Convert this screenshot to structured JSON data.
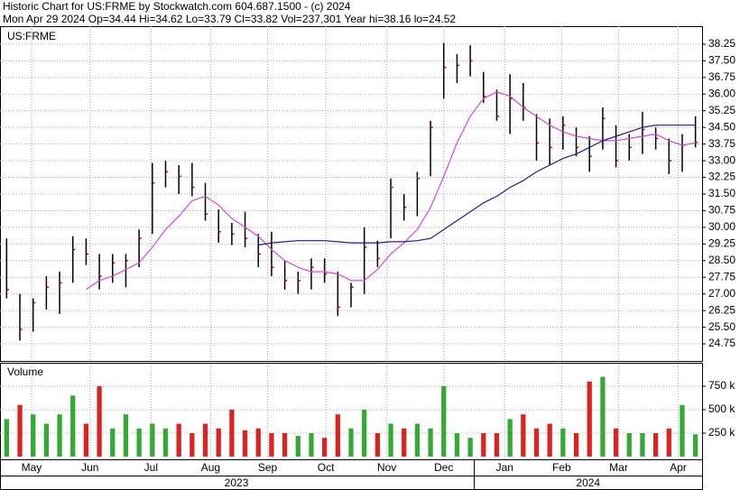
{
  "chart_data": {
    "type": "ohlc",
    "title": "Historic Chart for US:FRME by Stockwatch.com 604.687.1500 - (c) 2024",
    "subtitle": "Mon Apr 29 2024   Op=34.44   Hi=34.62   Lo=33.79   Cl=33.82   Vol=237,301   Year hi=38.16   lo=24.52",
    "symbol": "US:FRME",
    "x": [
      0,
      1,
      2,
      3,
      4,
      5,
      6,
      7,
      8,
      9,
      10,
      11,
      12,
      13,
      14,
      15,
      16,
      17,
      18,
      19,
      20,
      21,
      22,
      23,
      24,
      25,
      26,
      27,
      28,
      29,
      30,
      31,
      32,
      33,
      34,
      35,
      36,
      37,
      38,
      39,
      40,
      41,
      42,
      43,
      44,
      45,
      46,
      47,
      48,
      49,
      50,
      51,
      52
    ],
    "xlim": [
      -0.5,
      52.5
    ],
    "xticks": [
      {
        "value": 1.88,
        "label": "May"
      },
      {
        "value": 6.3,
        "label": "Jun"
      },
      {
        "value": 10.9,
        "label": "Jul"
      },
      {
        "value": 15.4,
        "label": "Aug"
      },
      {
        "value": 19.7,
        "label": "Sep"
      },
      {
        "value": 24.1,
        "label": "Oct"
      },
      {
        "value": 28.7,
        "label": "Nov"
      },
      {
        "value": 33.0,
        "label": "Dec"
      },
      {
        "value": 37.6,
        "label": "Jan"
      },
      {
        "value": 41.9,
        "label": "Feb"
      },
      {
        "value": 46.2,
        "label": "Mar"
      },
      {
        "value": 50.7,
        "label": "Apr"
      }
    ],
    "year_ticks": [
      {
        "value": 17.35,
        "label": "2023"
      },
      {
        "value": 43.9,
        "label": "2024"
      }
    ],
    "year_break": 35.3,
    "high": [
      29.5,
      27.0,
      26.8,
      27.8,
      28.0,
      29.6,
      29.5,
      28.8,
      28.8,
      28.8,
      29.9,
      32.9,
      33.0,
      32.8,
      32.9,
      32.0,
      30.8,
      30.2,
      30.7,
      29.7,
      29.8,
      28.5,
      28.0,
      28.6,
      28.6,
      28.0,
      27.5,
      30.0,
      29.4,
      32.2,
      31.5,
      32.5,
      34.8,
      38.3,
      37.8,
      38.2,
      37.0,
      36.2,
      36.9,
      36.5,
      35.1,
      34.9,
      35.0,
      34.5,
      34.1,
      35.4,
      34.6,
      34.2,
      35.2,
      34.5,
      34.0,
      34.2,
      35.0
    ],
    "low": [
      26.8,
      24.9,
      25.3,
      26.3,
      26.1,
      27.5,
      28.3,
      27.2,
      27.5,
      27.3,
      28.2,
      29.7,
      31.8,
      31.5,
      31.4,
      30.3,
      29.3,
      29.2,
      29.1,
      28.2,
      27.8,
      27.2,
      27.0,
      27.2,
      27.5,
      26.0,
      26.4,
      27.0,
      28.2,
      29.5,
      30.3,
      30.5,
      32.3,
      35.8,
      36.5,
      36.8,
      35.6,
      34.8,
      34.2,
      34.8,
      33.0,
      32.8,
      33.5,
      33.2,
      32.5,
      33.5,
      32.7,
      33.0,
      33.3,
      33.5,
      32.4,
      32.5,
      33.6
    ],
    "close": [
      27.2,
      25.4,
      26.6,
      27.3,
      27.5,
      29.0,
      28.8,
      27.8,
      28.4,
      28.5,
      29.5,
      32.0,
      32.5,
      32.3,
      31.8,
      30.6,
      29.8,
      29.7,
      29.5,
      28.8,
      28.2,
      27.6,
      27.6,
      28.2,
      27.9,
      26.4,
      27.3,
      29.1,
      28.6,
      31.8,
      30.9,
      32.2,
      34.5,
      37.2,
      37.3,
      37.5,
      35.9,
      35.0,
      35.8,
      35.4,
      33.8,
      33.6,
      34.6,
      33.6,
      33.2,
      34.9,
      33.0,
      33.6,
      34.4,
      34.0,
      33.0,
      33.7,
      33.82
    ],
    "bar_color": "#000000",
    "close_color": "#cc0000",
    "series": [
      {
        "color": "#e040e0",
        "values": [
          null,
          null,
          null,
          null,
          null,
          null,
          27.2,
          27.6,
          27.8,
          28.1,
          28.4,
          29.1,
          29.9,
          30.5,
          31.2,
          31.4,
          31.0,
          30.4,
          30.0,
          29.6,
          29.0,
          28.5,
          28.2,
          28.0,
          28.0,
          27.9,
          27.6,
          27.6,
          28.1,
          28.8,
          29.3,
          29.9,
          30.9,
          32.3,
          33.8,
          35.0,
          35.8,
          36.1,
          35.9,
          35.4,
          35.0,
          34.6,
          34.3,
          34.1,
          34.0,
          33.9,
          33.9,
          34.0,
          34.1,
          34.2,
          33.9,
          33.7,
          33.8
        ]
      },
      {
        "color": "#1a1aa0",
        "values": [
          null,
          null,
          null,
          null,
          null,
          null,
          null,
          null,
          null,
          null,
          null,
          null,
          null,
          null,
          null,
          null,
          null,
          null,
          null,
          29.2,
          29.3,
          29.35,
          29.4,
          29.4,
          29.4,
          29.35,
          29.3,
          29.3,
          29.3,
          29.35,
          29.35,
          29.4,
          29.5,
          29.9,
          30.3,
          30.7,
          31.1,
          31.4,
          31.8,
          32.1,
          32.5,
          32.8,
          33.1,
          33.3,
          33.6,
          33.9,
          34.1,
          34.3,
          34.5,
          34.6,
          34.6,
          34.6,
          34.6
        ]
      }
    ],
    "ylim": [
      23.98,
      39.06
    ],
    "yticks": [
      24.75,
      {
        "value": 25.5,
        "label": "25.50"
      },
      26.25,
      {
        "value": 27,
        "label": "27.00"
      },
      27.75,
      {
        "value": 28.5,
        "label": "28.50"
      },
      29.25,
      {
        "value": 30,
        "label": "30.00"
      },
      30.75,
      {
        "value": 31.5,
        "label": "31.50"
      },
      32.25,
      {
        "value": 33,
        "label": "33.00"
      },
      33.75,
      {
        "value": 34.5,
        "label": "34.50"
      },
      35.25,
      {
        "value": 36,
        "label": "36.00"
      },
      36.75,
      {
        "value": 37.5,
        "label": "37.50"
      },
      38.25
    ],
    "grid": true,
    "volume": {
      "title": "Volume",
      "values": [
        400000,
        550000,
        450000,
        350000,
        450000,
        650000,
        350000,
        750000,
        300000,
        450000,
        300000,
        350000,
        300000,
        350000,
        250000,
        350000,
        300000,
        500000,
        280000,
        300000,
        250000,
        250000,
        220000,
        250000,
        200000,
        450000,
        300000,
        500000,
        250000,
        350000,
        300000,
        350000,
        300000,
        750000,
        250000,
        200000,
        250000,
        250000,
        400000,
        450000,
        300000,
        350000,
        300000,
        250000,
        800000,
        850000,
        300000,
        250000,
        250000,
        250000,
        300000,
        550000,
        237301
      ],
      "up_color": "#33aa33",
      "down_color": "#dd2222",
      "ylim": [
        0,
        990000
      ],
      "yticks": [
        {
          "value": 250000,
          "label": "250 k"
        },
        {
          "value": 500000,
          "label": "500 k"
        },
        {
          "value": 750000,
          "label": "750 k"
        }
      ]
    }
  }
}
